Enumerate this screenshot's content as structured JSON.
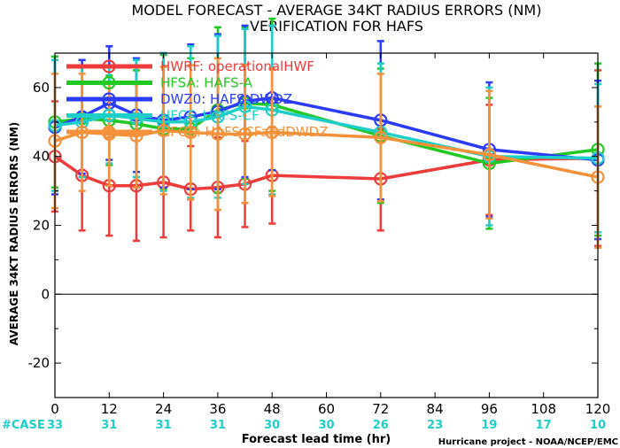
{
  "chart_data": {
    "type": "line",
    "title": "MODEL FORECAST - AVERAGE 34KT RADIUS ERRORS (NM)",
    "subtitle": "VERIFICATION FOR HAFS",
    "xlabel": "Forecast lead time (hr)",
    "ylabel": "AVERAGE 34KT RADIUS ERRORS (NM)",
    "credit": "Hurricane project - NOAA/NCEP/EMC",
    "xlim": [
      0,
      120
    ],
    "ylim": [
      -30,
      70
    ],
    "x_ticks": [
      0,
      12,
      24,
      36,
      48,
      60,
      72,
      84,
      96,
      108,
      120
    ],
    "y_ticks": [
      -20,
      0,
      20,
      40,
      60
    ],
    "zero_line": true,
    "case_label": "#CASE",
    "case_counts": [
      {
        "x": 0,
        "n": "33"
      },
      {
        "x": 12,
        "n": "31"
      },
      {
        "x": 24,
        "n": "31"
      },
      {
        "x": 36,
        "n": "31"
      },
      {
        "x": 48,
        "n": "30"
      },
      {
        "x": 60,
        "n": "30"
      },
      {
        "x": 72,
        "n": "26"
      },
      {
        "x": 84,
        "n": "23"
      },
      {
        "x": 96,
        "n": "19"
      },
      {
        "x": 108,
        "n": "17"
      },
      {
        "x": 120,
        "n": "10"
      }
    ],
    "legend_placement": "top-left",
    "series": [
      {
        "name": "HWRF: operationalHWF",
        "color": "#ee3b3b",
        "x": [
          0,
          6,
          12,
          18,
          24,
          30,
          36,
          42,
          48,
          72,
          96,
          120
        ],
        "y": [
          40,
          34.5,
          31.5,
          31.5,
          32.5,
          30.5,
          31,
          32,
          34.5,
          33.5,
          39,
          39.5
        ],
        "err_lo": [
          24,
          18.5,
          17,
          15.5,
          16.5,
          18.5,
          16.5,
          19.5,
          20.5,
          18.5,
          23,
          14
        ],
        "err_hi": [
          56,
          50.5,
          46.5,
          47.5,
          48.5,
          43,
          45.5,
          44.5,
          48.5,
          48,
          55,
          65
        ]
      },
      {
        "name": "HFSA: HAFS-A",
        "color": "#22c922",
        "x": [
          0,
          6,
          12,
          18,
          24,
          30,
          36,
          42,
          48,
          72,
          96,
          120
        ],
        "y": [
          50,
          51,
          50.5,
          49.5,
          48,
          48,
          53.5,
          55.5,
          55,
          46,
          38,
          42
        ],
        "err_lo": [
          31,
          34,
          37.5,
          34,
          30.5,
          27.5,
          29.5,
          33.5,
          30,
          26.5,
          19,
          17
        ],
        "err_hi": [
          69,
          68,
          63.5,
          65,
          69.5,
          68.5,
          77.5,
          77.5,
          80,
          65.5,
          57,
          67
        ]
      },
      {
        "name": "DWZ0: HAFS-DWDZ",
        "color": "#2b3bff",
        "x": [
          0,
          6,
          12,
          18,
          24,
          30,
          36,
          42,
          48,
          72,
          96,
          120
        ],
        "y": [
          48.5,
          51.5,
          55.5,
          52,
          50.5,
          51.5,
          53,
          56,
          57,
          50.5,
          42,
          39
        ],
        "err_lo": [
          29,
          35,
          39,
          35.5,
          31,
          30.5,
          30.5,
          34,
          36,
          27.5,
          22.5,
          16
        ],
        "err_hi": [
          68,
          68,
          72,
          68.5,
          70,
          72.5,
          75.5,
          78,
          78,
          73.5,
          61.5,
          62
        ]
      },
      {
        "name": "HFCF: HAFS-CF",
        "color": "#1ecfc9",
        "x": [
          0,
          6,
          12,
          18,
          24,
          30,
          36,
          42,
          48,
          72,
          96,
          120
        ],
        "y": [
          49,
          50,
          52,
          51,
          50,
          50,
          51.5,
          54.5,
          53.5,
          47,
          40,
          39.5
        ],
        "err_lo": [
          30,
          34,
          38,
          34,
          30,
          28,
          28,
          32,
          29,
          27,
          20,
          18
        ],
        "err_hi": [
          68,
          66,
          66,
          68,
          70,
          72,
          75,
          77,
          78,
          67,
          60,
          61
        ]
      },
      {
        "name": "HFCZ: HAFS-CFandDWDZ",
        "color": "#f4913a",
        "x": [
          0,
          6,
          12,
          18,
          24,
          30,
          36,
          42,
          48,
          72,
          96,
          120
        ],
        "y": [
          44.5,
          47,
          46.5,
          46,
          47.5,
          47,
          46.5,
          46.5,
          47,
          45.5,
          40.5,
          34
        ],
        "err_lo": [
          25,
          30,
          31.5,
          31,
          29,
          27.5,
          24.5,
          26.5,
          28.5,
          27,
          22,
          13.5
        ],
        "err_hi": [
          64,
          64,
          61.5,
          61,
          66,
          66.5,
          68.5,
          66.5,
          65.5,
          64,
          59,
          54.5
        ]
      }
    ]
  }
}
